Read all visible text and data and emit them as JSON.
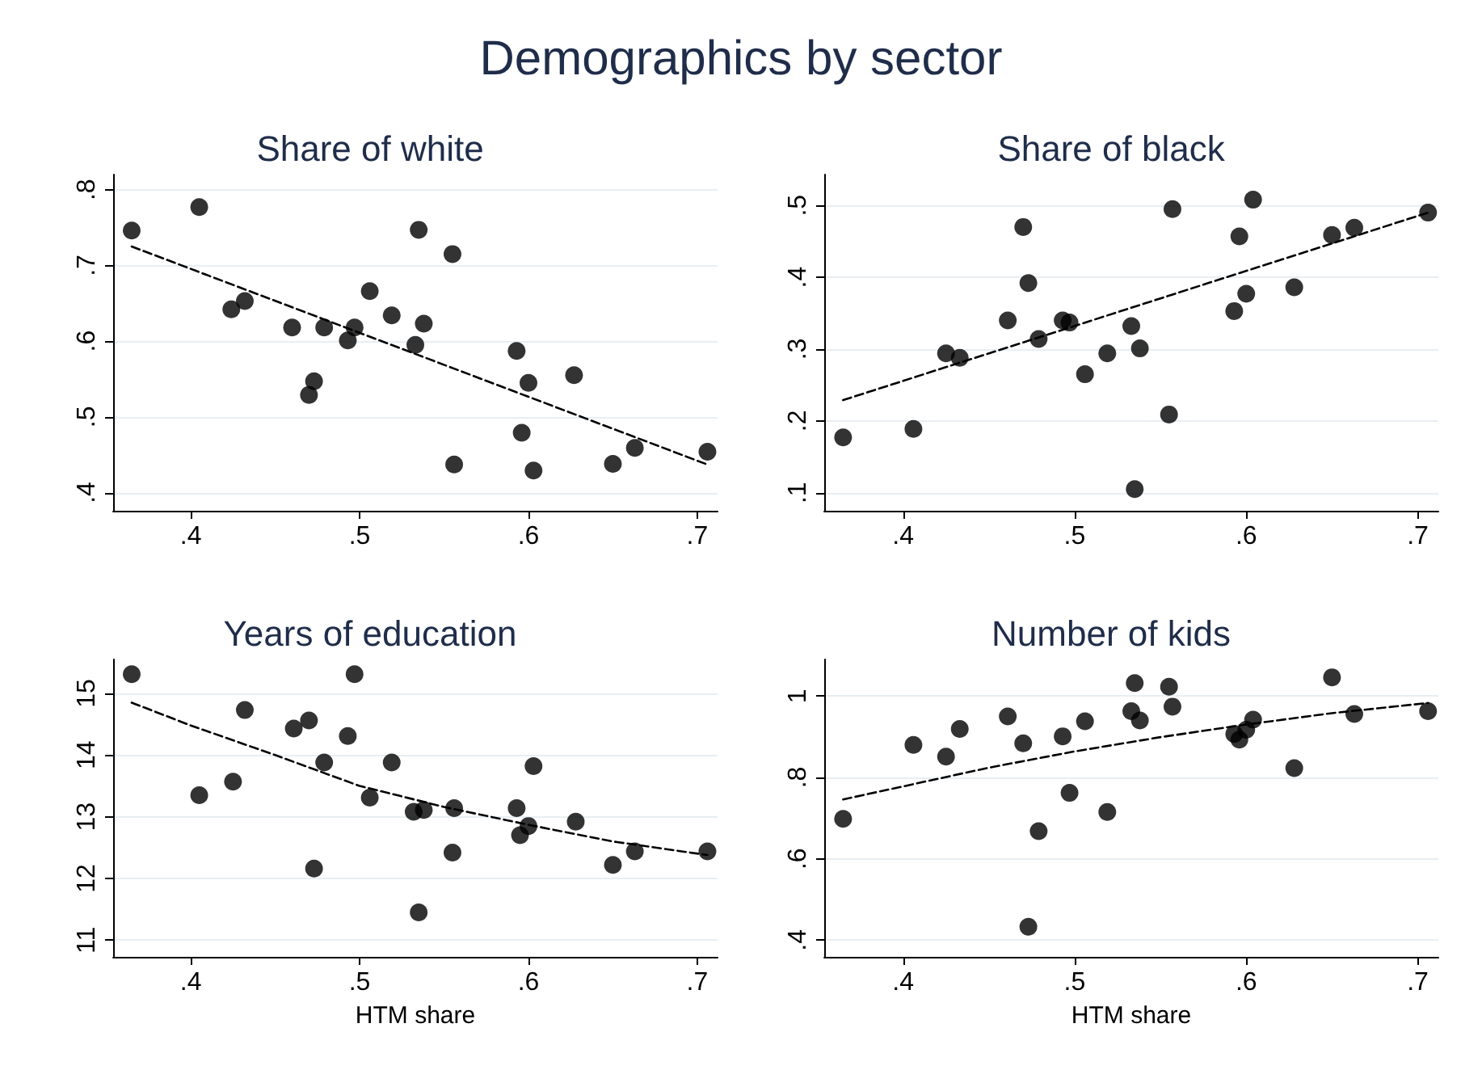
{
  "chart_data": [
    {
      "type": "other",
      "title": "Demographics by sector"
    },
    {
      "type": "scatter",
      "title": "Share of white",
      "xlim": [
        0.354,
        0.712
      ],
      "xticks": [
        {
          "value": 0.4,
          "label": ".4"
        },
        {
          "value": 0.5,
          "label": ".5"
        },
        {
          "value": 0.6,
          "label": ".6"
        },
        {
          "value": 0.7,
          "label": ".7"
        }
      ],
      "ylim": [
        0.376,
        0.82
      ],
      "yticks": [
        {
          "value": 0.4,
          "label": ".4"
        },
        {
          "value": 0.5,
          "label": ".5"
        },
        {
          "value": 0.6,
          "label": ".6"
        },
        {
          "value": 0.7,
          "label": ".7"
        },
        {
          "value": 0.8,
          "label": ".8"
        }
      ],
      "grid": "y",
      "series": [
        {
          "type": "scatter",
          "color": "#000000",
          "marker": "circle",
          "x": [
            0.365,
            0.405,
            0.424,
            0.432,
            0.46,
            0.479,
            0.47,
            0.473,
            0.493,
            0.497,
            0.506,
            0.519,
            0.533,
            0.535,
            0.538,
            0.555,
            0.556,
            0.593,
            0.596,
            0.6,
            0.603,
            0.627,
            0.65,
            0.663,
            0.706
          ],
          "values": [
            0.746,
            0.777,
            0.642,
            0.653,
            0.618,
            0.618,
            0.529,
            0.547,
            0.601,
            0.618,
            0.666,
            0.634,
            0.595,
            0.747,
            0.623,
            0.715,
            0.437,
            0.587,
            0.479,
            0.545,
            0.429,
            0.555,
            0.438,
            0.459,
            0.454
          ]
        },
        {
          "type": "line",
          "color": "#000000",
          "marker": "none",
          "line_style": "dashed",
          "x": [
            0.365,
            0.706
          ],
          "values": [
            0.725,
            0.437
          ]
        }
      ]
    },
    {
      "type": "scatter",
      "title": "Share of black",
      "xlim": [
        0.354,
        0.712
      ],
      "xticks": [
        {
          "value": 0.4,
          "label": ".4"
        },
        {
          "value": 0.5,
          "label": ".5"
        },
        {
          "value": 0.6,
          "label": ".6"
        },
        {
          "value": 0.7,
          "label": ".7"
        }
      ],
      "ylim": [
        0.075,
        0.543
      ],
      "yticks": [
        {
          "value": 0.1,
          "label": ".1"
        },
        {
          "value": 0.2,
          "label": ".2"
        },
        {
          "value": 0.3,
          "label": ".3"
        },
        {
          "value": 0.4,
          "label": ".4"
        },
        {
          "value": 0.5,
          "label": ".5"
        }
      ],
      "grid": "y",
      "series": [
        {
          "type": "scatter",
          "color": "#000000",
          "marker": "circle",
          "x": [
            0.365,
            0.406,
            0.425,
            0.433,
            0.461,
            0.47,
            0.473,
            0.479,
            0.493,
            0.497,
            0.506,
            0.519,
            0.533,
            0.538,
            0.535,
            0.555,
            0.557,
            0.593,
            0.596,
            0.6,
            0.604,
            0.628,
            0.65,
            0.663,
            0.706
          ],
          "values": [
            0.177,
            0.189,
            0.294,
            0.288,
            0.34,
            0.47,
            0.392,
            0.314,
            0.34,
            0.337,
            0.265,
            0.294,
            0.332,
            0.301,
            0.105,
            0.209,
            0.495,
            0.353,
            0.457,
            0.377,
            0.508,
            0.386,
            0.459,
            0.469,
            0.49
          ]
        },
        {
          "type": "line",
          "color": "#000000",
          "marker": "none",
          "line_style": "dashed",
          "x": [
            0.365,
            0.706
          ],
          "values": [
            0.229,
            0.49
          ]
        }
      ]
    },
    {
      "type": "scatter",
      "title": "Years of education",
      "xlabel": "HTM share",
      "xlim": [
        0.354,
        0.712
      ],
      "xticks": [
        {
          "value": 0.4,
          "label": ".4"
        },
        {
          "value": 0.5,
          "label": ".5"
        },
        {
          "value": 0.6,
          "label": ".6"
        },
        {
          "value": 0.7,
          "label": ".7"
        }
      ],
      "ylim": [
        10.73,
        15.55
      ],
      "yticks": [
        11,
        12,
        13,
        14,
        15
      ],
      "grid": "y",
      "series": [
        {
          "type": "scatter",
          "color": "#000000",
          "marker": "circle",
          "x": [
            0.365,
            0.405,
            0.425,
            0.432,
            0.461,
            0.47,
            0.473,
            0.479,
            0.493,
            0.497,
            0.506,
            0.519,
            0.532,
            0.538,
            0.535,
            0.555,
            0.556,
            0.593,
            0.595,
            0.6,
            0.603,
            0.628,
            0.65,
            0.663,
            0.706
          ],
          "values": [
            15.31,
            13.35,
            13.57,
            14.73,
            14.43,
            14.56,
            12.16,
            13.88,
            14.31,
            15.31,
            13.31,
            13.88,
            13.08,
            13.11,
            11.45,
            12.42,
            13.14,
            13.14,
            12.7,
            12.85,
            13.82,
            12.92,
            12.22,
            12.44,
            12.44
          ]
        },
        {
          "type": "line",
          "color": "#000000",
          "marker": "none",
          "line_style": "dashed",
          "x": [
            0.365,
            0.4,
            0.45,
            0.5,
            0.55,
            0.6,
            0.65,
            0.706
          ],
          "values": [
            14.85,
            14.48,
            14.0,
            13.5,
            13.16,
            12.87,
            12.6,
            12.38
          ]
        }
      ]
    },
    {
      "type": "scatter",
      "title": "Number of kids",
      "xlabel": "HTM share",
      "xlim": [
        0.354,
        0.712
      ],
      "xticks": [
        {
          "value": 0.4,
          "label": ".4"
        },
        {
          "value": 0.5,
          "label": ".5"
        },
        {
          "value": 0.6,
          "label": ".6"
        },
        {
          "value": 0.7,
          "label": ".7"
        }
      ],
      "ylim": [
        0.359,
        1.09
      ],
      "yticks": [
        {
          "value": 0.4,
          "label": ".4"
        },
        {
          "value": 0.6,
          "label": ".6"
        },
        {
          "value": 0.8,
          "label": ".8"
        },
        1
      ],
      "grid": "y",
      "series": [
        {
          "type": "scatter",
          "color": "#000000",
          "marker": "circle",
          "x": [
            0.365,
            0.406,
            0.425,
            0.433,
            0.461,
            0.47,
            0.473,
            0.479,
            0.493,
            0.497,
            0.506,
            0.519,
            0.533,
            0.535,
            0.538,
            0.555,
            0.557,
            0.593,
            0.596,
            0.6,
            0.604,
            0.628,
            0.65,
            0.663,
            0.706
          ],
          "values": [
            0.698,
            0.88,
            0.851,
            0.919,
            0.95,
            0.884,
            0.433,
            0.668,
            0.901,
            0.762,
            0.938,
            0.715,
            0.963,
            1.032,
            0.94,
            1.023,
            0.974,
            0.907,
            0.893,
            0.917,
            0.942,
            0.823,
            1.046,
            0.956,
            0.963
          ]
        },
        {
          "type": "line",
          "color": "#000000",
          "marker": "none",
          "line_style": "dashed",
          "x": [
            0.365,
            0.4,
            0.45,
            0.5,
            0.55,
            0.6,
            0.65,
            0.706
          ],
          "values": [
            0.746,
            0.778,
            0.824,
            0.864,
            0.899,
            0.93,
            0.958,
            0.983
          ]
        }
      ]
    }
  ]
}
